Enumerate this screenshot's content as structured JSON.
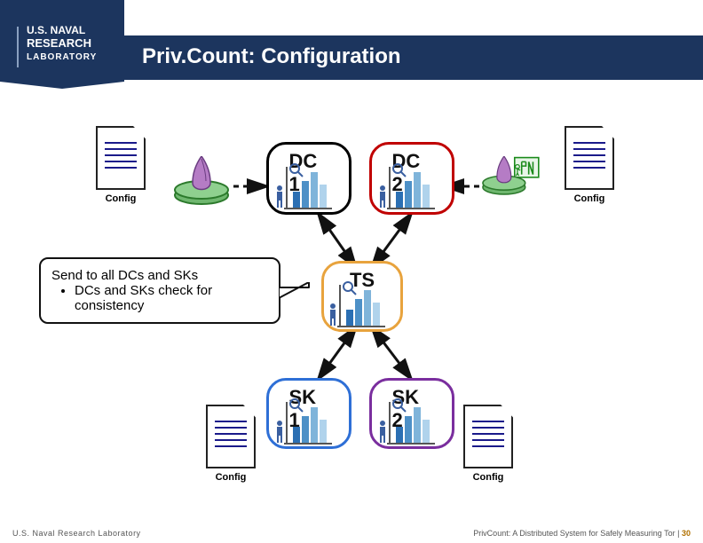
{
  "title": "Priv.Count: Configuration",
  "colors": {
    "band": "#1c355e",
    "dc1_border": "#000000",
    "dc2_border": "#c00000",
    "ts_border": "#e8a33d",
    "sk1_border": "#2e6fd6",
    "sk2_border": "#7a2e9e",
    "doc_fill": "#ffffff",
    "doc_line": "#1a1a8a",
    "bar1": "#2b6fb3",
    "bar2": "#4d90c7",
    "bar3": "#7fb4da",
    "bar4": "#b0d3ec"
  },
  "nodes": {
    "dc1": {
      "label": "DC 1"
    },
    "dc2": {
      "label": "DC 2"
    },
    "ts": {
      "label": "TS"
    },
    "sk1": {
      "label": "SK 1"
    },
    "sk2": {
      "label": "SK 2"
    }
  },
  "docs": {
    "top_left": {
      "label": "Config"
    },
    "top_right": {
      "label": "Config"
    },
    "bot_left": {
      "label": "Config"
    },
    "bot_right": {
      "label": "Config"
    }
  },
  "callout": {
    "heading": "Send to all DCs and SKs",
    "bullet": "DCs and SKs check for consistency"
  },
  "footer": {
    "left": "U.S. Naval Research Laboratory",
    "right_text": "PrivCount: A Distributed System for Safely Measuring Tor |",
    "page": "30"
  },
  "logo": {
    "line1": "U.S. NAVAL",
    "line2": "RESEARCH",
    "line3": "LABORATORY"
  }
}
